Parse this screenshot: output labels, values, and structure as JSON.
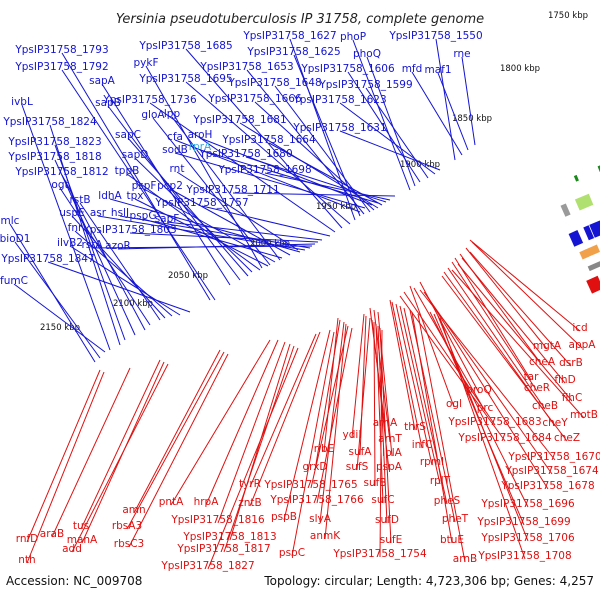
{
  "title": "Yersinia pseudotuberculosis IP 31758, complete genome",
  "footer": {
    "accession": "Accession: NC_009708",
    "summary": "Topology: circular; Length: 4,723,306 bp; Genes: 4,257"
  },
  "colors": {
    "forward_strand": "#1414d2",
    "reverse_strand": "#e01010",
    "highlight_label": "#36a9e1",
    "backbone": "#888888",
    "tick": "#1a8a1a"
  },
  "ticks": [
    "1750 kbp",
    "1800 kbp",
    "1850 kbp",
    "1900 kbp",
    "1950 kbp",
    "2000 kbp",
    "2050 kbp",
    "2100 kbp",
    "2150 kbp"
  ],
  "forward_labels": [
    "YpsIP31758_1793",
    "YpsIP31758_1792",
    "ivbL",
    "YpsIP31758_1824",
    "YpsIP31758_1823",
    "YpsIP31758_1818",
    "YpsIP31758_1812",
    "ogt",
    "rstB",
    "uspE",
    "fnr",
    "ilvB2",
    "YpsIP31758_1847",
    "mlc",
    "bioD1",
    "fumC",
    "sapA",
    "sapB",
    "sapC",
    "sapD",
    "pykF",
    "gloA",
    "lpp",
    "tppB",
    "tpx",
    "pspF",
    "pspG",
    "pcp2",
    "rnt",
    "ldhA",
    "asr",
    "hslJ",
    "rstA",
    "azoR",
    "YpsIP31758_1803",
    "sapF",
    "YpsIP31758_1757",
    "YpsIP31758_1736",
    "YpsIP31758_1685",
    "YpsIP31758_1695",
    "YpsIP31758_1627",
    "YpsIP31758_1625",
    "YpsIP31758_1653",
    "YpsIP31758_1648",
    "YpsIP31758_1666",
    "YpsIP31758_1681",
    "YpsIP31758_1664",
    "YpsIP31758_1680",
    "YpsIP31758_1698",
    "YpsIP31758_1711",
    "cfa",
    "sodB",
    "aroH",
    "rprA",
    "phoP",
    "phoQ",
    "YpsIP31758_1606",
    "YpsIP31758_1599",
    "YpsIP31758_1623",
    "YpsIP31758_1631",
    "YpsIP31758_1550",
    "mfd",
    "maf1",
    "rne"
  ],
  "reverse_labels": [
    "icd",
    "appA",
    "mgtA",
    "dsrB",
    "cheA",
    "tar",
    "flhD",
    "cheR",
    "flhC",
    "cheB",
    "motB",
    "cheY",
    "cheZ",
    "proQ",
    "ogl",
    "prc",
    "YpsIP31758_1683",
    "YpsIP31758_1684",
    "YpsIP31758_1670",
    "YpsIP31758_1674",
    "YpsIP31758_1678",
    "thrS",
    "infC",
    "rpmI",
    "rplT",
    "pheS",
    "pheT",
    "btuE",
    "arnB",
    "YpsIP31758_1696",
    "YpsIP31758_1699",
    "YpsIP31758_1706",
    "YpsIP31758_1708",
    "arnA",
    "arnT",
    "lplA",
    "ydiI",
    "sufA",
    "sufS",
    "pspA",
    "sufB",
    "sufC",
    "sufD",
    "sufE",
    "YpsIP31758_1754",
    "ribE",
    "grxD",
    "slyA",
    "anmK",
    "YpsIP31758_1765",
    "YpsIP31758_1766",
    "pspB",
    "pspC",
    "zntB",
    "tyrR",
    "pntA",
    "hrpA",
    "YpsIP31758_1816",
    "YpsIP31758_1813",
    "YpsIP31758_1817",
    "YpsIP31758_1827",
    "amn",
    "rbsA3",
    "rbsC3",
    "tus",
    "manA",
    "add",
    "araB",
    "rnfD",
    "nth"
  ]
}
